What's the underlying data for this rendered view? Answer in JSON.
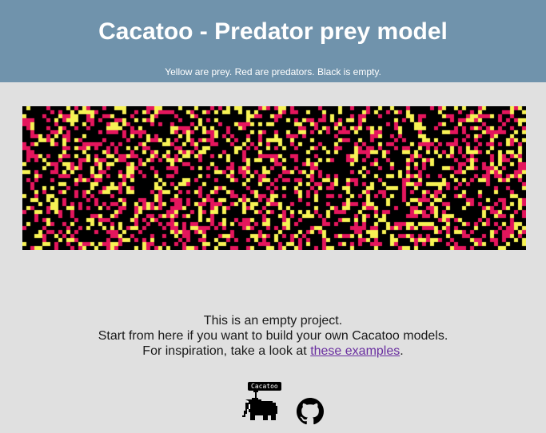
{
  "header": {
    "title": "Cacatoo - Predator prey model",
    "subtitle": "Yellow are prey. Red are predators. Black is empty."
  },
  "colors": {
    "header_bg": "#7093ac",
    "page_bg": "#e0e0e0",
    "empty": "#000000",
    "prey": "#f7f254",
    "predator": "#e4165d",
    "link": "#6a2fa0"
  },
  "message": {
    "line1": "This is an empty project.",
    "line2": "Start from here if you want to build your own Cacatoo models.",
    "line3_prefix": "For inspiration, take a look at ",
    "link_text": "these examples",
    "line3_suffix": "."
  },
  "footer": {
    "logo_label": "Cacatoo",
    "logo_icon": "cacatoo-logo-icon",
    "github_icon": "github-icon"
  }
}
